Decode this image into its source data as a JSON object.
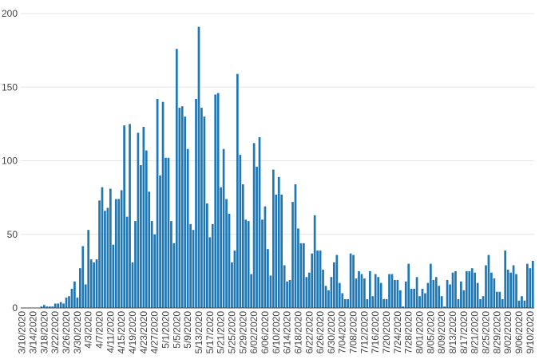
{
  "chart_data": {
    "type": "bar",
    "title": "",
    "xlabel": "",
    "ylabel": "",
    "ylim": [
      0,
      200
    ],
    "y_ticks": [
      0,
      50,
      100,
      150,
      200
    ],
    "grid": true,
    "bar_color": "#1f77b4",
    "start_date": "3/10/2020",
    "x_tick_labels": [
      "3/10/2020",
      "3/14/2020",
      "3/18/2020",
      "3/22/2020",
      "3/26/2020",
      "3/30/2020",
      "4/3/2020",
      "4/7/2020",
      "4/11/2020",
      "4/15/2020",
      "4/19/2020",
      "4/23/2020",
      "4/27/2020",
      "5/1/2020",
      "5/5/2020",
      "5/9/2020",
      "5/13/2020",
      "5/17/2020",
      "5/21/2020",
      "5/25/2020",
      "5/29/2020",
      "6/02/2020",
      "6/06/2020",
      "6/10/2020",
      "6/14/2020",
      "6/18/2020",
      "6/22/2020",
      "6/26/2020",
      "6/30/2020",
      "7/04/2020",
      "7/08/2020",
      "7/12/2020",
      "7/16/2020",
      "7/20/2020",
      "7/24/2020",
      "7/28/2020",
      "8/01/2020",
      "8/05/2020",
      "8/09/2020",
      "8/13/2020",
      "8/17/2020",
      "8/21/2020",
      "8/25/2020",
      "8/29/2020",
      "9/02/2020",
      "9/06/2020",
      "9/10/2020"
    ],
    "values": [
      0,
      0,
      0,
      0,
      0,
      0,
      0,
      1,
      2,
      1,
      1,
      1,
      3,
      3,
      4,
      3,
      7,
      8,
      13,
      18,
      7,
      27,
      42,
      16,
      53,
      33,
      31,
      33,
      73,
      82,
      66,
      68,
      81,
      43,
      74,
      74,
      80,
      124,
      62,
      125,
      31,
      59,
      119,
      97,
      123,
      107,
      79,
      59,
      50,
      142,
      90,
      140,
      102,
      102,
      59,
      44,
      176,
      136,
      137,
      130,
      108,
      57,
      53,
      142,
      191,
      136,
      130,
      71,
      48,
      57,
      145,
      146,
      82,
      108,
      74,
      64,
      31,
      39,
      159,
      104,
      84,
      60,
      59,
      23,
      112,
      96,
      116,
      60,
      69,
      40,
      22,
      94,
      77,
      89,
      77,
      29,
      18,
      19,
      72,
      84,
      54,
      44,
      44,
      21,
      24,
      37,
      63,
      39,
      39,
      26,
      15,
      12,
      21,
      31,
      36,
      17,
      10,
      6,
      6,
      37,
      36,
      20,
      25,
      23,
      20,
      6,
      25,
      8,
      23,
      21,
      17,
      6,
      6,
      23,
      23,
      19,
      19,
      12,
      1,
      18,
      30,
      13,
      13,
      21,
      8,
      13,
      10,
      17,
      30,
      19,
      21,
      15,
      8,
      1,
      19,
      16,
      24,
      25,
      6,
      18,
      12,
      25,
      25,
      27,
      24,
      17,
      6,
      8,
      29,
      36,
      24,
      20,
      11,
      11,
      6,
      39,
      26,
      24,
      29,
      23,
      5,
      8,
      5,
      30,
      27,
      32
    ]
  }
}
